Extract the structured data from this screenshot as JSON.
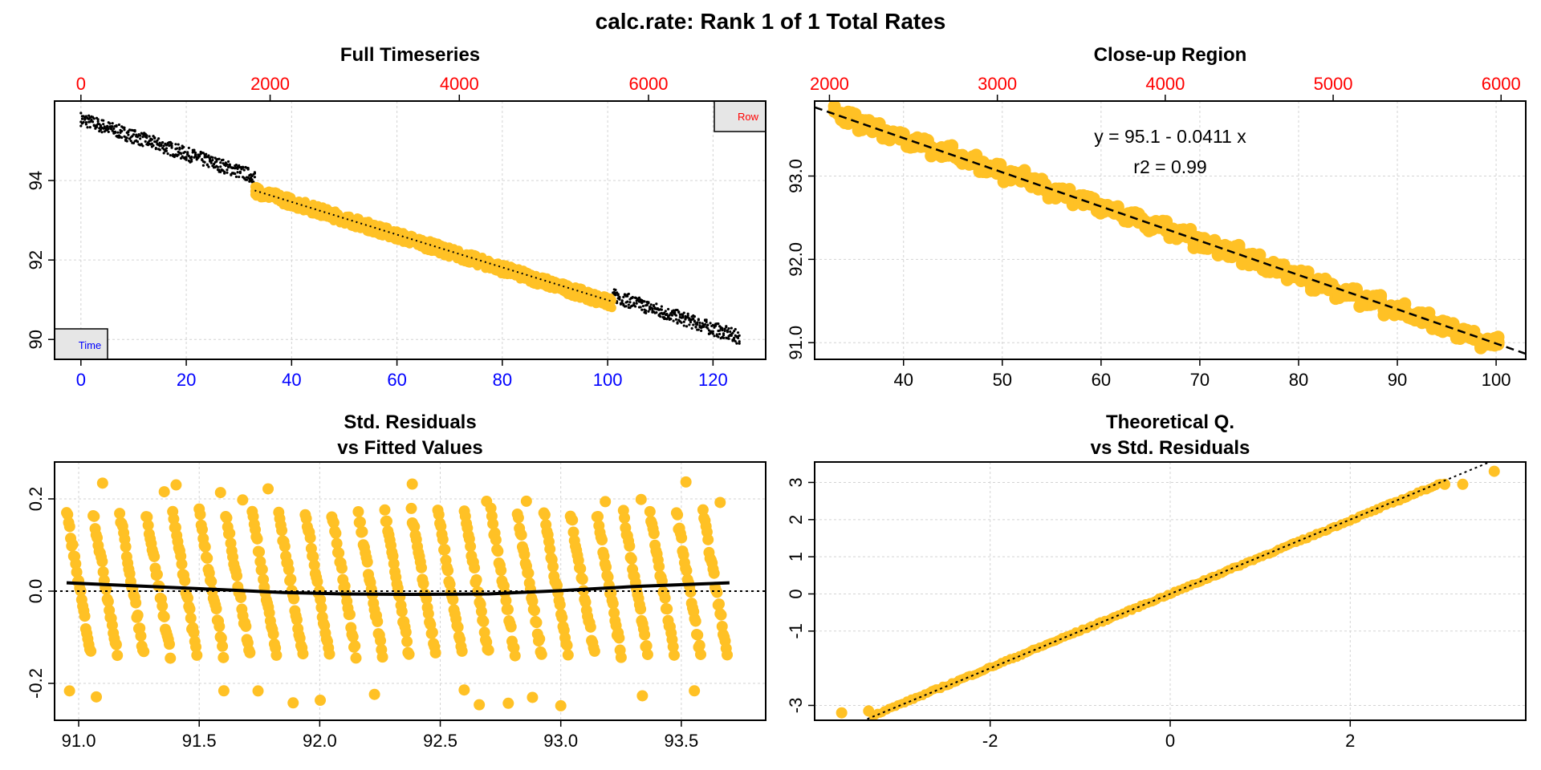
{
  "main_title": "calc.rate: Rank 1 of 1 Total Rates",
  "colors": {
    "points": "#FFC125",
    "raw_points": "#000000",
    "top_axis": "#FF0000",
    "bottom_axis_full": "#0000FF",
    "grid": "#D3D3D3",
    "legend_box": "#E6E6E6"
  },
  "chart_data": [
    {
      "id": "full_timeseries",
      "type": "scatter",
      "title": "Full Timeseries",
      "xlabel": "",
      "ylabel": "",
      "xlim": [
        -5,
        130
      ],
      "ylim": [
        89.5,
        96.0
      ],
      "x_ticks": [
        "0",
        "20",
        "40",
        "60",
        "80",
        "100",
        "120"
      ],
      "x_tick_values": [
        0,
        20,
        40,
        60,
        80,
        100,
        120
      ],
      "top_ticks": [
        "0",
        "2000",
        "4000",
        "6000"
      ],
      "top_tick_values": [
        0,
        2000,
        4000,
        6000
      ],
      "top_axis_label": "Row",
      "y_ticks": [
        "90",
        "92",
        "94"
      ],
      "y_tick_values": [
        90,
        92,
        94
      ],
      "bottom_axis_label": "Time",
      "grid": true,
      "series": [
        {
          "role": "raw",
          "x_start": 0,
          "x_end": 125,
          "y_start": 95.55,
          "y_end": 90.05
        },
        {
          "role": "subset",
          "x_start": 33,
          "x_end": 101,
          "y_start": 93.75,
          "y_end": 90.9
        }
      ],
      "fit_line": {
        "x": [
          33,
          101
        ],
        "y": [
          93.75,
          90.95
        ]
      }
    },
    {
      "id": "closeup_region",
      "type": "scatter",
      "title": "Close-up Region",
      "xlabel": "",
      "ylabel": "",
      "xlim": [
        31,
        103
      ],
      "ylim": [
        90.8,
        93.9
      ],
      "x_ticks": [
        "40",
        "50",
        "60",
        "70",
        "80",
        "90",
        "100"
      ],
      "x_tick_values": [
        40,
        50,
        60,
        70,
        80,
        90,
        100
      ],
      "top_ticks": [
        "2000",
        "3000",
        "4000",
        "5000",
        "6000"
      ],
      "top_tick_values": [
        2000,
        3000,
        4000,
        5000,
        6000
      ],
      "y_ticks": [
        "91.0",
        "92.0",
        "93.0"
      ],
      "y_tick_values": [
        91.0,
        92.0,
        93.0
      ],
      "grid": true,
      "series": [
        {
          "role": "subset",
          "x_start": 33,
          "x_end": 100.5,
          "y_start": 93.75,
          "y_end": 90.95
        }
      ],
      "regression": {
        "intercept": 95.1,
        "slope": -0.0411
      },
      "annotations": [
        "y = 95.1 - 0.0411 x",
        "r2 = 0.99"
      ]
    },
    {
      "id": "residuals_vs_fitted",
      "type": "scatter",
      "title": "Std. Residuals",
      "subtitle": "vs Fitted Values",
      "xlabel": "",
      "ylabel": "",
      "xlim": [
        90.9,
        93.85
      ],
      "ylim": [
        0.28,
        -0.28
      ],
      "x_ticks": [
        "91.0",
        "91.5",
        "92.0",
        "92.5",
        "93.0",
        "93.5"
      ],
      "x_tick_values": [
        91.0,
        91.5,
        92.0,
        92.5,
        93.0,
        93.5
      ],
      "y_ticks": [
        "-0.2",
        "0.0",
        "0.2"
      ],
      "y_tick_values": [
        -0.2,
        0.0,
        0.2
      ],
      "grid": true,
      "reference_line": 0.0,
      "smooth": {
        "x": [
          90.95,
          91.3,
          91.6,
          91.85,
          92.1,
          92.4,
          92.7,
          93.0,
          93.3,
          93.7
        ],
        "y": [
          0.018,
          0.01,
          0.003,
          -0.003,
          -0.006,
          -0.007,
          -0.006,
          0.001,
          0.01,
          0.018
        ]
      },
      "band_count": 25
    },
    {
      "id": "qq_plot",
      "type": "scatter",
      "title": "Theoretical Q.",
      "subtitle": "vs Std. Residuals",
      "xlabel": "",
      "ylabel": "",
      "xlim": [
        -3.95,
        3.95
      ],
      "ylim": [
        -3.4,
        3.55
      ],
      "x_ticks": [
        "-2",
        "0",
        "2"
      ],
      "x_tick_values": [
        -2,
        0,
        2
      ],
      "y_ticks": [
        "-3",
        "-1",
        "0",
        "1",
        "2",
        "3"
      ],
      "y_tick_values": [
        -3,
        -1,
        0,
        1,
        2,
        3
      ],
      "grid": true,
      "reference_line": {
        "slope": 1.0,
        "intercept": 0.0
      },
      "extreme_points": [
        [
          -3.65,
          -3.2
        ],
        [
          -3.35,
          -3.15
        ],
        [
          3.05,
          2.95
        ],
        [
          3.25,
          2.95
        ],
        [
          3.6,
          3.3
        ]
      ]
    }
  ]
}
